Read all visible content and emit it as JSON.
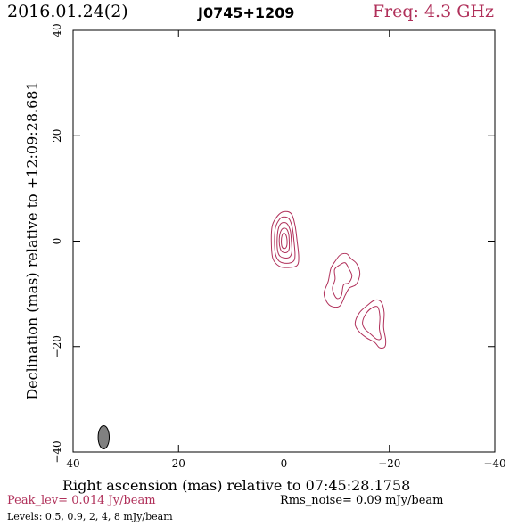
{
  "header": {
    "date": "2016.01.24(2)",
    "source": "J0745+1209",
    "freq": "Freq: 4.3 GHz"
  },
  "footer": {
    "peak": "Peak_lev=  0.014 Jy/beam",
    "rms": "Rms_noise= 0.09 mJy/beam",
    "levels": "Levels: 0.5, 0.9,   2,   4,   8 mJy/beam"
  },
  "colors": {
    "contour": "#b0305a",
    "beam": "#808080",
    "axis": "#000000"
  },
  "chart_data": {
    "type": "contour",
    "title": "J0745+1209",
    "xlabel": "Right ascension (mas) relative to 07:45:28.1758",
    "ylabel": "Declination (mas) relative to +12:09:28.681",
    "xlim": [
      40,
      -40
    ],
    "ylim": [
      -40,
      40
    ],
    "xticks": [
      40,
      20,
      0,
      -20,
      -40
    ],
    "yticks": [
      -40,
      -20,
      0,
      20,
      40
    ],
    "tick_labels_x": [
      "40",
      "20",
      "0",
      "−20",
      "−40"
    ],
    "tick_labels_y": [
      "−40",
      "−20",
      "0",
      "20",
      "40"
    ],
    "levels_mJy": [
      0.5,
      0.9,
      2,
      4,
      8
    ],
    "beam": {
      "x": 34.2,
      "y": -37.2,
      "major": 2.2,
      "minor": 1.05,
      "pa_deg": 0
    },
    "components": [
      {
        "name": "core",
        "contours": [
          [
            [
              2.4,
              0
            ],
            [
              2.2,
              3
            ],
            [
              1.2,
              4.8
            ],
            [
              0,
              5.6
            ],
            [
              -1.4,
              5.2
            ],
            [
              -2.1,
              3
            ],
            [
              -2.5,
              0
            ],
            [
              -2.8,
              -3
            ],
            [
              -2.5,
              -4.6
            ],
            [
              -1,
              -5
            ],
            [
              0.8,
              -4.8
            ],
            [
              2.1,
              -3.3
            ]
          ],
          [
            [
              1.8,
              0
            ],
            [
              1.6,
              2.6
            ],
            [
              0.8,
              4.2
            ],
            [
              0,
              4.6
            ],
            [
              -1,
              4.2
            ],
            [
              -1.6,
              2.5
            ],
            [
              -1.9,
              0
            ],
            [
              -2.1,
              -2.6
            ],
            [
              -1.8,
              -3.8
            ],
            [
              -0.5,
              -4.2
            ],
            [
              0.9,
              -3.8
            ],
            [
              1.6,
              -2.5
            ]
          ],
          [
            [
              1.3,
              0
            ],
            [
              1.1,
              2.2
            ],
            [
              0.5,
              3.4
            ],
            [
              -0.5,
              3.4
            ],
            [
              -1.2,
              2
            ],
            [
              -1.4,
              0
            ],
            [
              -1.5,
              -2
            ],
            [
              -1.1,
              -3
            ],
            [
              -0.2,
              -3.2
            ],
            [
              0.8,
              -2.8
            ],
            [
              1.2,
              -1.8
            ]
          ],
          [
            [
              0.9,
              0
            ],
            [
              0.7,
              1.6
            ],
            [
              0.2,
              2.4
            ],
            [
              -0.5,
              2.3
            ],
            [
              -0.9,
              1.3
            ],
            [
              -1,
              0
            ],
            [
              -1,
              -1.4
            ],
            [
              -0.6,
              -2.1
            ],
            [
              0.2,
              -2.1
            ],
            [
              0.7,
              -1.4
            ]
          ],
          [
            [
              0.5,
              0
            ],
            [
              0.35,
              1.1
            ],
            [
              0,
              1.5
            ],
            [
              -0.4,
              1.1
            ],
            [
              -0.6,
              0
            ],
            [
              -0.5,
              -1
            ],
            [
              -0.1,
              -1.4
            ],
            [
              0.35,
              -1.1
            ]
          ]
        ]
      },
      {
        "name": "jet-knot-1",
        "contours": [
          [
            [
              -7.6,
              -9.8
            ],
            [
              -8.4,
              -7.6
            ],
            [
              -8.9,
              -5.2
            ],
            [
              -9.8,
              -3.7
            ],
            [
              -10.7,
              -2.6
            ],
            [
              -11.9,
              -2.4
            ],
            [
              -12.7,
              -3.3
            ],
            [
              -13.8,
              -4.3
            ],
            [
              -14.4,
              -6.2
            ],
            [
              -13.7,
              -8.2
            ],
            [
              -12.4,
              -8.9
            ],
            [
              -11.6,
              -10.3
            ],
            [
              -10.6,
              -12.3
            ],
            [
              -9.1,
              -12.4
            ],
            [
              -8.1,
              -11.5
            ]
          ],
          [
            [
              -9.2,
              -8.9
            ],
            [
              -9.7,
              -7.2
            ],
            [
              -9.6,
              -5.4
            ],
            [
              -10.6,
              -4.5
            ],
            [
              -11.6,
              -4.1
            ],
            [
              -12.3,
              -5.2
            ],
            [
              -12.9,
              -6.6
            ],
            [
              -12.3,
              -7.9
            ],
            [
              -11.3,
              -8.3
            ],
            [
              -10.9,
              -10.3
            ],
            [
              -10.2,
              -10.9
            ],
            [
              -9.6,
              -10.3
            ]
          ]
        ]
      },
      {
        "name": "jet-knot-2",
        "contours": [
          [
            [
              -13.5,
              -15.6
            ],
            [
              -14.3,
              -13.6
            ],
            [
              -15.8,
              -12.2
            ],
            [
              -17.2,
              -11.2
            ],
            [
              -18.4,
              -11.5
            ],
            [
              -19,
              -13.5
            ],
            [
              -18.9,
              -16.3
            ],
            [
              -19.3,
              -18.8
            ],
            [
              -19.1,
              -20.1
            ],
            [
              -18.1,
              -20.2
            ],
            [
              -17.2,
              -19.2
            ],
            [
              -15.6,
              -18.3
            ],
            [
              -14.2,
              -17.1
            ]
          ],
          [
            [
              -14.9,
              -15.4
            ],
            [
              -15.6,
              -13.7
            ],
            [
              -16.8,
              -12.6
            ],
            [
              -17.8,
              -12.5
            ],
            [
              -18.2,
              -14.3
            ],
            [
              -18.1,
              -16.6
            ],
            [
              -18.4,
              -18.4
            ],
            [
              -17.6,
              -18.6
            ],
            [
              -16.3,
              -17.5
            ],
            [
              -15.3,
              -16.6
            ]
          ]
        ]
      }
    ]
  }
}
